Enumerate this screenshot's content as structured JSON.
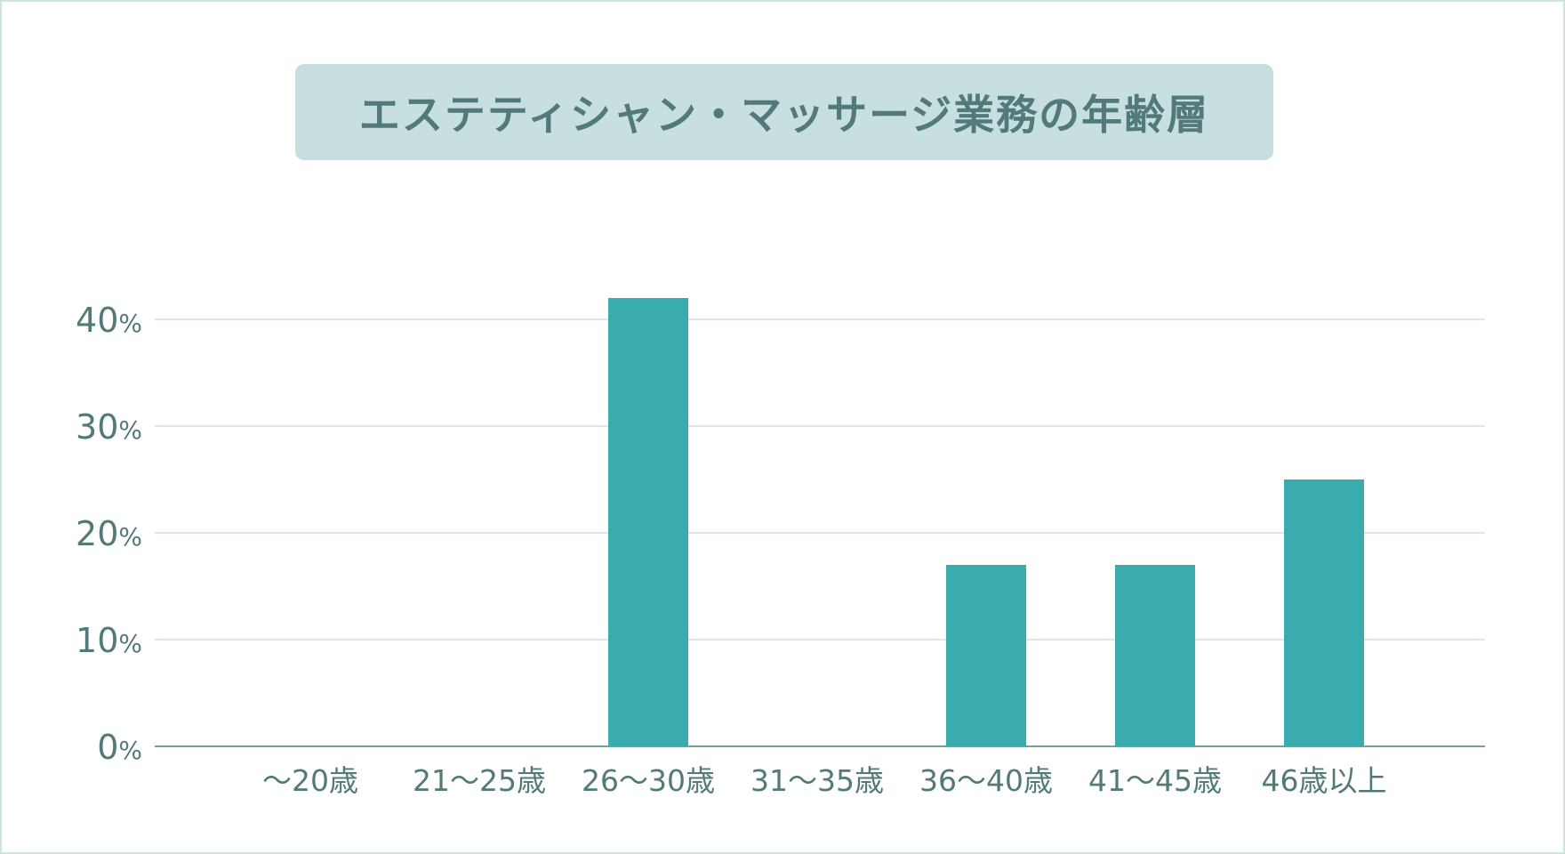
{
  "chart_data": {
    "type": "bar",
    "title": "エステティシャン・マッサージ業務の年齢層",
    "categories": [
      "～20歳",
      "21～25歳",
      "26～30歳",
      "31～35歳",
      "36～40歳",
      "41～45歳",
      "46歳以上"
    ],
    "values": [
      0,
      0,
      42,
      0,
      17,
      17,
      25
    ],
    "ylim": [
      0,
      40
    ],
    "yticks": [
      {
        "value": 0,
        "num": "0",
        "unit": "%"
      },
      {
        "value": 10,
        "num": "10",
        "unit": "%"
      },
      {
        "value": 20,
        "num": "20",
        "unit": "%"
      },
      {
        "value": 30,
        "num": "30",
        "unit": "%"
      },
      {
        "value": 40,
        "num": "40",
        "unit": "%"
      }
    ],
    "grid": true,
    "colors": {
      "bar": "#3aacb0",
      "text": "#517a79",
      "grid": "#d3dfe0",
      "axis": "#7f9c9c",
      "title_bg": "#c8dfe1"
    }
  }
}
